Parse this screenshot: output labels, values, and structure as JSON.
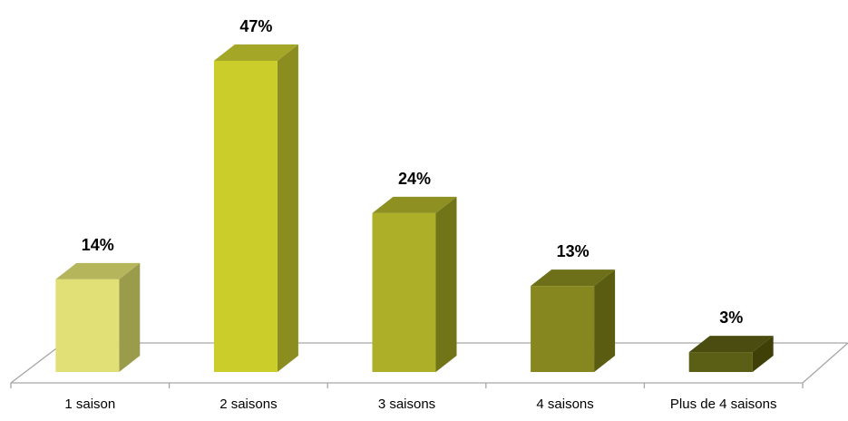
{
  "chart_data": {
    "type": "bar",
    "title": "",
    "xlabel": "",
    "ylabel": "",
    "grid": false,
    "legend": "none",
    "style": "3d-column",
    "categories": [
      "1 saison",
      "2 saisons",
      "3 saisons",
      "4 saisons",
      "Plus de 4 saisons"
    ],
    "values": [
      14,
      47,
      24,
      13,
      3
    ],
    "data_labels": [
      "14%",
      "47%",
      "24%",
      "13%",
      "3%"
    ],
    "unit": "%",
    "ylim": [
      0,
      47
    ],
    "colors": [
      "#E0E077",
      "#CBCE2A",
      "#AEAF28",
      "#86871F",
      "#5B5E15"
    ],
    "side_colors": [
      "#9B9B4C",
      "#8B8D1E",
      "#727418",
      "#5A5C12",
      "#3E4008"
    ],
    "top_colors": [
      "#B5B55C",
      "#A3A626",
      "#8E9021",
      "#6D6F19",
      "#4A4C10"
    ],
    "floor_line_color": "#A6A6A6"
  }
}
